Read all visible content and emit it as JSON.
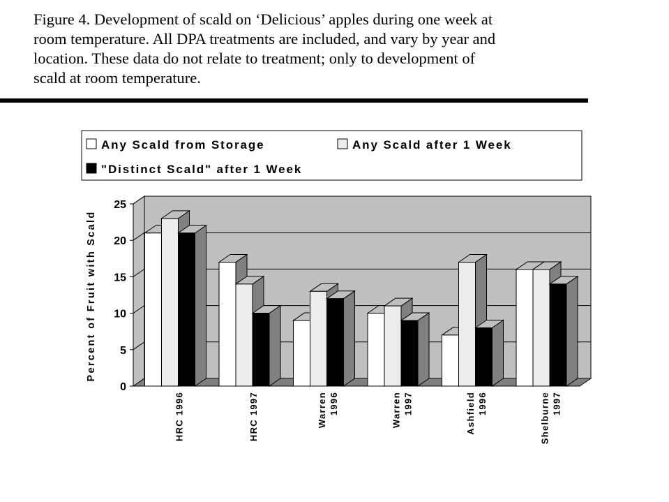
{
  "caption": {
    "lines": [
      "Figure 4.  Development of scald on ‘Delicious’ apples during one week at",
      "room temperature.  All DPA treatments are included, and vary by year and",
      "location.  These data do not relate to treatment; only to development of",
      "scald at room temperature."
    ]
  },
  "colors": {
    "storage": "#ffffff",
    "after_week": "#ececec",
    "distinct": "#000000",
    "wall": "#c0c0c0",
    "floor": "#7f7f7f",
    "bar_side": "#808080",
    "bar_top": "#c0c0c0"
  },
  "chart_data": {
    "type": "bar",
    "categories": [
      [
        "HRC 1996"
      ],
      [
        "HRC 1997"
      ],
      [
        "Warren",
        "1996"
      ],
      [
        "Warren",
        "1997"
      ],
      [
        "Ashfield",
        "1996"
      ],
      [
        "Shelburne",
        "1997"
      ]
    ],
    "series": [
      {
        "name": "Any Scald from Storage",
        "values": [
          21,
          17,
          9,
          10,
          7,
          16
        ]
      },
      {
        "name": "Any Scald after 1 Week",
        "values": [
          23,
          14,
          13,
          11,
          17,
          16
        ]
      },
      {
        "name": "\"Distinct Scald\" after 1 Week",
        "values": [
          21,
          10,
          12,
          9,
          8,
          14
        ]
      }
    ],
    "xlabel": "",
    "ylabel": "Percent of Fruit with Scald",
    "ylim": [
      0,
      25
    ],
    "yticks": [
      0,
      5,
      10,
      15,
      20,
      25
    ],
    "grid": true,
    "legend_position": "top",
    "style": "3d-clustered"
  }
}
